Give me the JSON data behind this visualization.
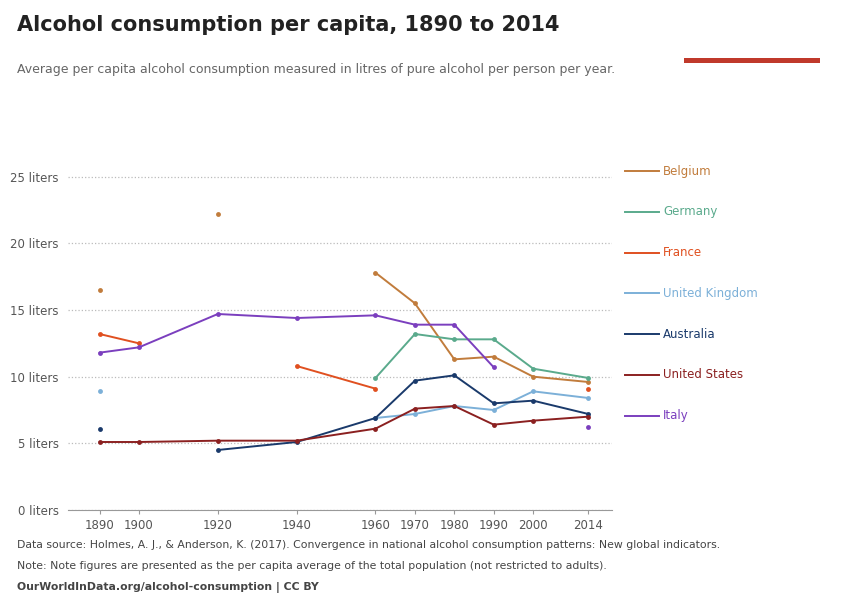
{
  "title": "Alcohol consumption per capita, 1890 to 2014",
  "subtitle": "Average per capita alcohol consumption measured in litres of pure alcohol per person per year.",
  "ylim": [
    0,
    27
  ],
  "yticks": [
    0,
    5,
    10,
    15,
    20,
    25
  ],
  "ytick_labels": [
    "0 liters",
    "5 liters",
    "10 liters",
    "15 liters",
    "20 liters",
    "25 liters"
  ],
  "years": [
    1890,
    1900,
    1920,
    1940,
    1960,
    1970,
    1980,
    1990,
    2000,
    2014
  ],
  "xtick_years": [
    1890,
    1900,
    1920,
    1940,
    1960,
    1970,
    1980,
    1990,
    2000,
    2014
  ],
  "series": {
    "Belgium": {
      "color": "#c17c3c",
      "values": [
        16.5,
        null,
        22.2,
        null,
        17.8,
        15.5,
        11.3,
        11.5,
        10.0,
        9.6
      ]
    },
    "Germany": {
      "color": "#5aaa8c",
      "values": [
        null,
        null,
        null,
        null,
        9.9,
        13.2,
        12.8,
        12.8,
        10.6,
        9.9
      ]
    },
    "France": {
      "color": "#e05020",
      "values": [
        13.2,
        12.5,
        null,
        10.8,
        9.1,
        null,
        null,
        null,
        null,
        9.1
      ]
    },
    "United Kingdom": {
      "color": "#7cb0d8",
      "values": [
        8.9,
        null,
        null,
        null,
        6.9,
        7.2,
        7.8,
        7.5,
        8.9,
        8.4
      ]
    },
    "Australia": {
      "color": "#1a3a6b",
      "values": [
        6.1,
        null,
        4.5,
        5.1,
        6.9,
        9.7,
        10.1,
        8.0,
        8.2,
        7.2
      ]
    },
    "United States": {
      "color": "#8b2020",
      "values": [
        5.1,
        5.1,
        5.2,
        5.2,
        6.1,
        7.6,
        7.8,
        6.4,
        6.7,
        7.0
      ]
    },
    "Italy": {
      "color": "#7b3fbe",
      "values": [
        11.8,
        12.2,
        14.7,
        14.4,
        14.6,
        13.9,
        13.9,
        10.7,
        null,
        6.2
      ]
    }
  },
  "legend_order": [
    "Belgium",
    "Germany",
    "France",
    "United Kingdom",
    "Australia",
    "United States",
    "Italy"
  ],
  "data_source": "Data source: Holmes, A. J., & Anderson, K. (2017). Convergence in national alcohol consumption patterns: New global indicators.",
  "note": "Note: Note figures are presented as the per capita average of the total population (not restricted to adults).",
  "url": "OurWorldInData.org/alcohol-consumption | CC BY",
  "background_color": "#ffffff",
  "logo_bg": "#1a3353",
  "logo_red": "#c0392b"
}
